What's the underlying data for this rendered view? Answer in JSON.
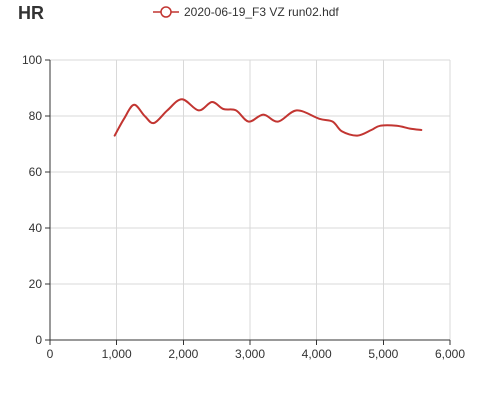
{
  "chart_data": {
    "type": "line",
    "title": "HR",
    "xlabel": "",
    "ylabel": "",
    "xlim": [
      0,
      6000
    ],
    "ylim": [
      0,
      100
    ],
    "x_ticks": [
      0,
      1000,
      2000,
      3000,
      4000,
      5000,
      6000
    ],
    "x_tick_labels": [
      "0",
      "1,000",
      "2,000",
      "3,000",
      "4,000",
      "5,000",
      "6,000"
    ],
    "y_ticks": [
      0,
      20,
      40,
      60,
      80,
      100
    ],
    "y_tick_labels": [
      "0",
      "20",
      "40",
      "60",
      "80",
      "100"
    ],
    "grid": true,
    "legend_position": "top-center",
    "series": [
      {
        "name": "2020-06-19_F3 VZ run02.hdf",
        "color": "#c23531",
        "marker": "empty-circle",
        "points": [
          [
            970,
            73
          ],
          [
            1110,
            79
          ],
          [
            1260,
            84
          ],
          [
            1420,
            80
          ],
          [
            1560,
            77.5
          ],
          [
            1760,
            82
          ],
          [
            1980,
            86
          ],
          [
            2230,
            82
          ],
          [
            2430,
            85
          ],
          [
            2600,
            82.5
          ],
          [
            2790,
            82
          ],
          [
            2980,
            78
          ],
          [
            3200,
            80.5
          ],
          [
            3420,
            78
          ],
          [
            3700,
            82
          ],
          [
            4040,
            79
          ],
          [
            4240,
            78
          ],
          [
            4380,
            74.5
          ],
          [
            4610,
            73
          ],
          [
            4820,
            75
          ],
          [
            4950,
            76.5
          ],
          [
            5200,
            76.5
          ],
          [
            5400,
            75.5
          ],
          [
            5570,
            75
          ]
        ]
      }
    ]
  }
}
